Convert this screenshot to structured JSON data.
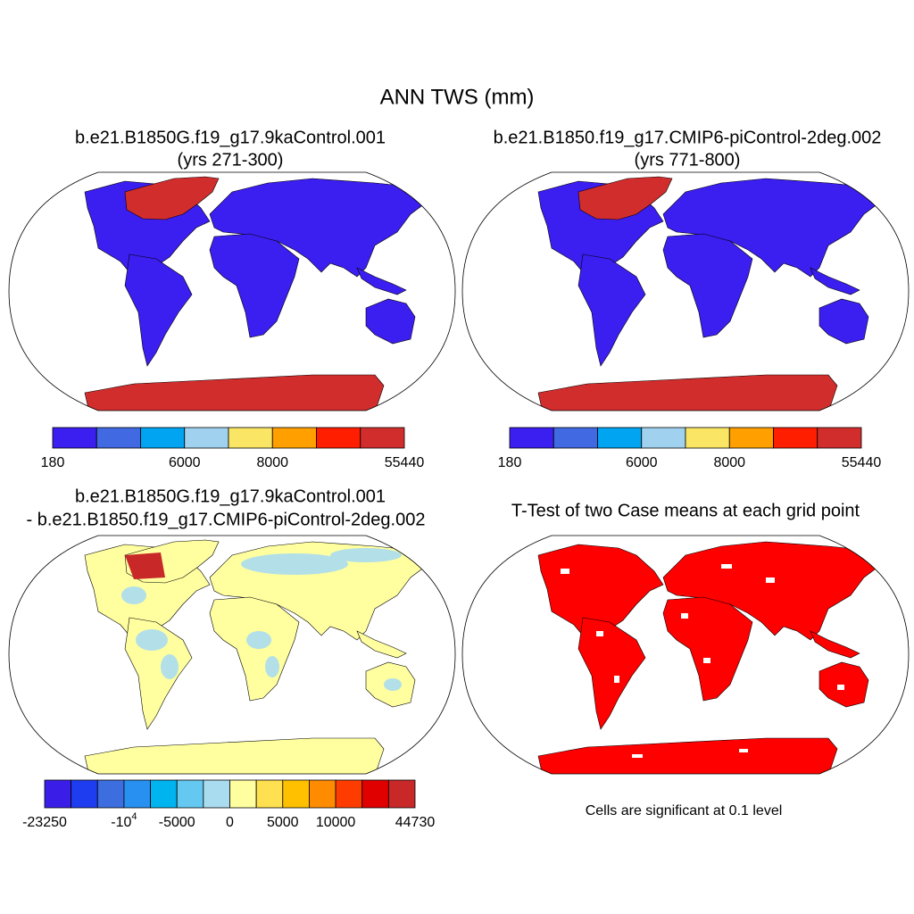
{
  "title": "ANN TWS (mm)",
  "panels": [
    {
      "title": [
        "b.e21.B1850G.f19_g17.9kaControl.001",
        "(yrs 271-300)"
      ],
      "colorbar": {
        "colors": [
          "#3b1ef0",
          "#4169e1",
          "#00a4f0",
          "#a0d2f0",
          "#fae664",
          "#ffa000",
          "#ff1e00",
          "#d22d2d"
        ],
        "labels": [
          "180",
          "6000",
          "8000",
          "55440"
        ]
      }
    },
    {
      "title": [
        "b.e21.B1850.f19_g17.CMIP6-piControl-2deg.002",
        "(yrs 771-800)"
      ],
      "colorbar": {
        "colors": [
          "#3b1ef0",
          "#4169e1",
          "#00a4f0",
          "#a0d2f0",
          "#fae664",
          "#ffa000",
          "#ff1e00",
          "#d22d2d"
        ],
        "labels": [
          "180",
          "6000",
          "8000",
          "55440"
        ]
      }
    },
    {
      "title": [
        "b.e21.B1850G.f19_g17.9kaControl.001",
        "- b.e21.B1850.f19_g17.CMIP6-piControl-2deg.002"
      ],
      "colorbar": {
        "colors": [
          "#3a1ee8",
          "#1e3cf0",
          "#3c6ee0",
          "#2890f0",
          "#00b4f0",
          "#64c8f0",
          "#aadcf0",
          "#ffffa0",
          "#ffe050",
          "#ffc000",
          "#ff8c00",
          "#ff3c00",
          "#e00000",
          "#c82828"
        ],
        "labels": [
          "-23250",
          {
            "base": "-10",
            "exponent": "4"
          },
          "-5000",
          "0",
          "5000",
          "10000",
          "44730"
        ]
      }
    },
    {
      "title": [
        "T-Test of two Case means at each grid point"
      ]
    }
  ],
  "footnote": "Cells are significant at 0.1 level"
}
